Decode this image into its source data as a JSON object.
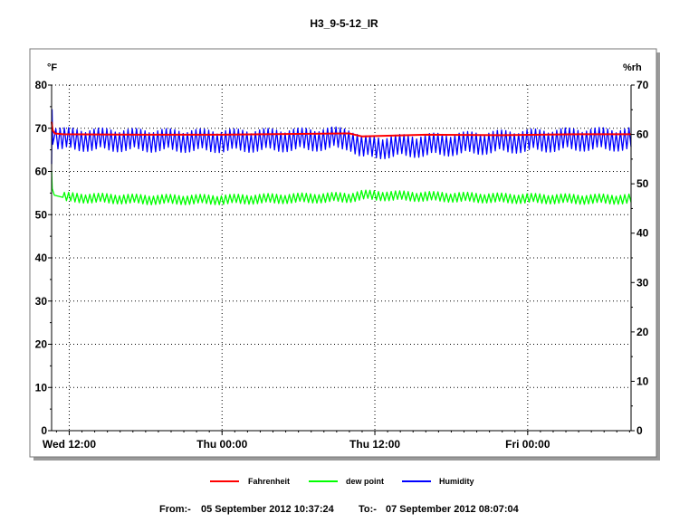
{
  "chart_data": {
    "type": "line",
    "title": "H3_9-5-12_IR",
    "left_axis": {
      "unit": "°F",
      "ylim": [
        0,
        80
      ],
      "ticks": [
        "0",
        "10",
        "20",
        "30",
        "40",
        "50",
        "60",
        "70",
        "80"
      ]
    },
    "right_axis": {
      "unit": "%rh",
      "ylim": [
        0,
        70
      ],
      "ticks": [
        "0",
        "10",
        "20",
        "30",
        "40",
        "50",
        "60",
        "70"
      ]
    },
    "x_axis": {
      "range": [
        "2012-09-05 10:37",
        "2012-09-07 08:07"
      ],
      "ticks": [
        {
          "label": "Wed 12:00",
          "time": "2012-09-05 12:00"
        },
        {
          "label": "Thu 00:00",
          "time": "2012-09-06 00:00"
        },
        {
          "label": "Thu 12:00",
          "time": "2012-09-06 12:00"
        },
        {
          "label": "Fri 00:00",
          "time": "2012-09-07 00:00"
        }
      ]
    },
    "grid": true,
    "legend_position": "bottom",
    "series": [
      {
        "name": "Fahrenheit",
        "axis": "left",
        "color": "#ff0000",
        "x": [
          "2012-09-05 10:37",
          "2012-09-05 10:42",
          "2012-09-05 10:52",
          "2012-09-05 11:30",
          "2012-09-05 18:00",
          "2012-09-06 00:00",
          "2012-09-06 06:00",
          "2012-09-06 10:00",
          "2012-09-06 11:00",
          "2012-09-06 16:00",
          "2012-09-06 22:00",
          "2012-09-07 04:00",
          "2012-09-07 08:07"
        ],
        "values": [
          71.5,
          69.5,
          68.8,
          68.6,
          68.5,
          68.5,
          68.7,
          68.8,
          68.1,
          68.5,
          68.4,
          68.6,
          68.6
        ]
      },
      {
        "name": "dew point",
        "axis": "left",
        "color": "#00ff00",
        "x": [
          "2012-09-05 10:37",
          "2012-09-05 10:40",
          "2012-09-05 10:50",
          "2012-09-05 11:30",
          "2012-09-05 18:00",
          "2012-09-06 00:00",
          "2012-09-06 06:00",
          "2012-09-06 10:00",
          "2012-09-06 11:00",
          "2012-09-06 16:00",
          "2012-09-06 22:00",
          "2012-09-07 04:00",
          "2012-09-07 08:07"
        ],
        "values": [
          60,
          56,
          54.5,
          54,
          53.5,
          53.5,
          53.8,
          54,
          54.5,
          54.2,
          53.8,
          53.6,
          53.6
        ],
        "swing": 1.2
      },
      {
        "name": "Humidity",
        "axis": "right",
        "color": "#0000ff",
        "x": [
          "2012-09-05 10:37",
          "2012-09-05 10:39",
          "2012-09-05 10:42",
          "2012-09-05 10:50",
          "2012-09-05 11:30",
          "2012-09-05 18:00",
          "2012-09-06 00:00",
          "2012-09-06 06:00",
          "2012-09-06 10:00",
          "2012-09-06 11:00",
          "2012-09-06 16:00",
          "2012-09-06 22:00",
          "2012-09-07 04:00",
          "2012-09-07 08:07"
        ],
        "values": [
          54,
          65,
          58,
          59.5,
          59,
          58.8,
          58.7,
          58.9,
          59.2,
          57.3,
          57.8,
          58.5,
          59,
          59
        ],
        "swing": 2.4
      }
    ],
    "footer": {
      "from_label": "From:-",
      "from_value": "05 September 2012 10:37:24",
      "to_label": "To:-",
      "to_value": "07 September 2012 08:07:04"
    }
  }
}
